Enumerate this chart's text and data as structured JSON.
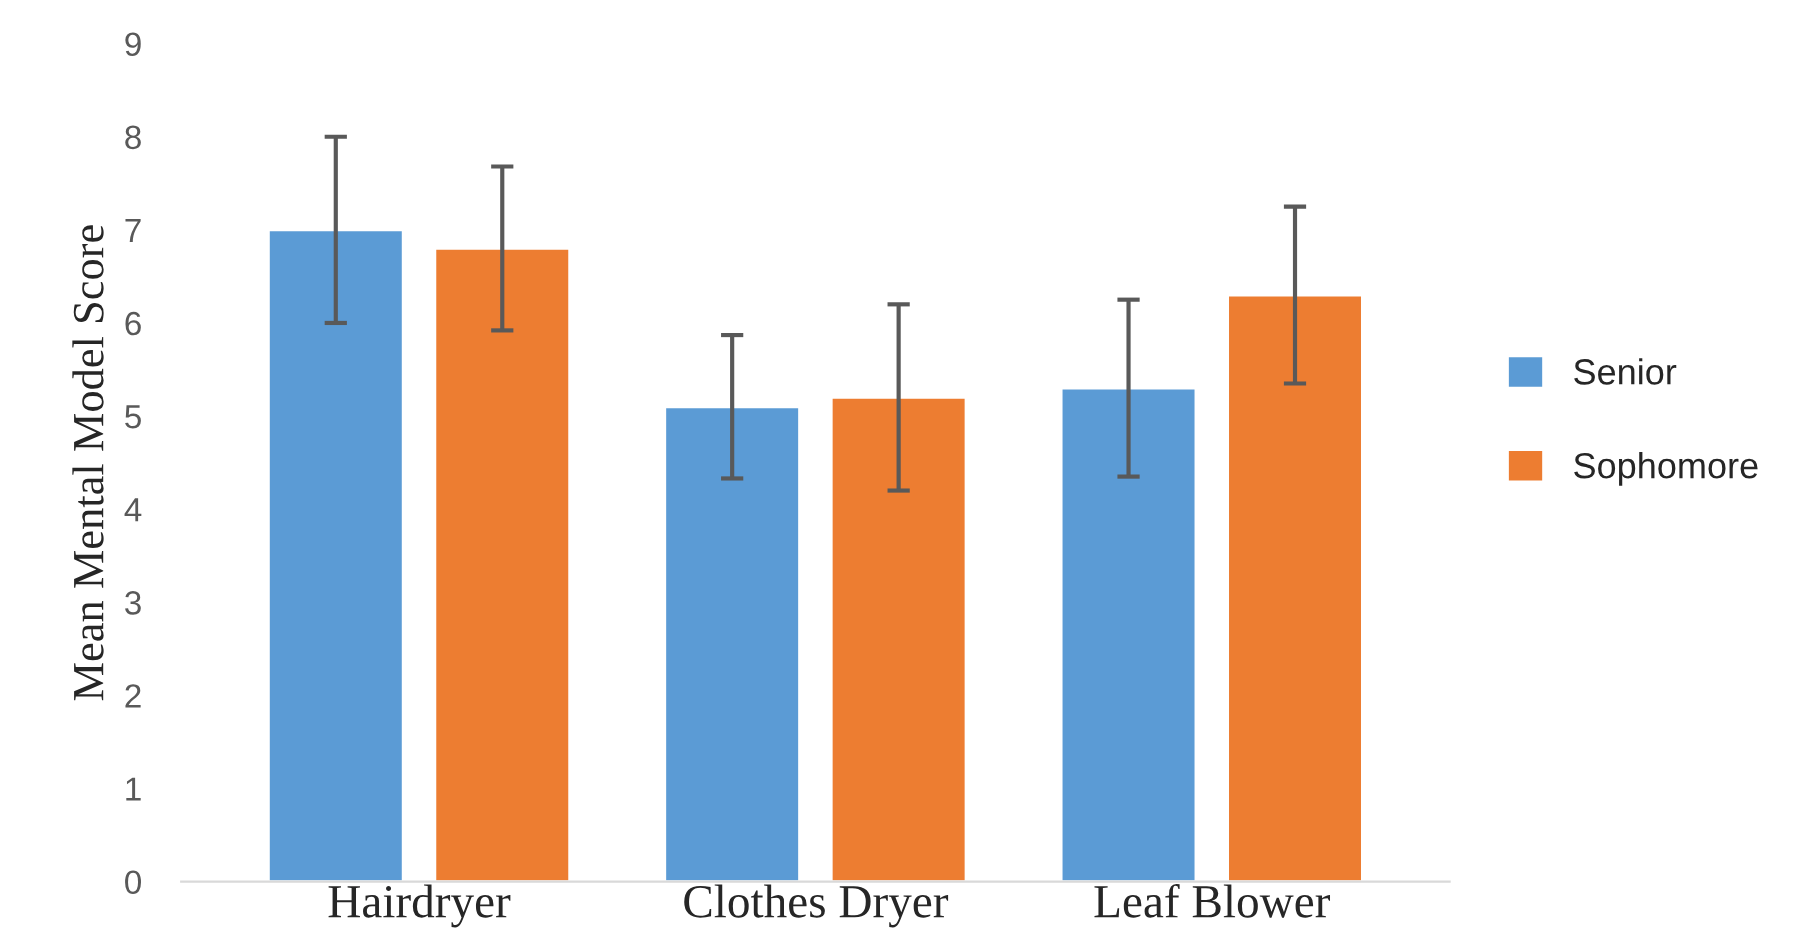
{
  "chart_data": {
    "type": "bar",
    "ylabel": "Mean Mental Model Score",
    "categories": [
      "Hairdryer",
      "Clothes Dryer",
      "Leaf Blower"
    ],
    "series": [
      {
        "name": "Senior",
        "color": "#5b9bd5",
        "values": [
          7.0,
          5.1,
          5.3
        ],
        "errors": [
          1.0,
          0.77,
          0.95
        ]
      },
      {
        "name": "Sophomore",
        "color": "#ed7d31",
        "values": [
          6.8,
          5.2,
          6.3
        ],
        "errors": [
          0.88,
          1.0,
          0.95
        ]
      }
    ],
    "ylim": [
      0,
      9
    ],
    "yticks": [
      0,
      1,
      2,
      3,
      4,
      5,
      6,
      7,
      8,
      9
    ],
    "grid": false,
    "legend": "right"
  }
}
